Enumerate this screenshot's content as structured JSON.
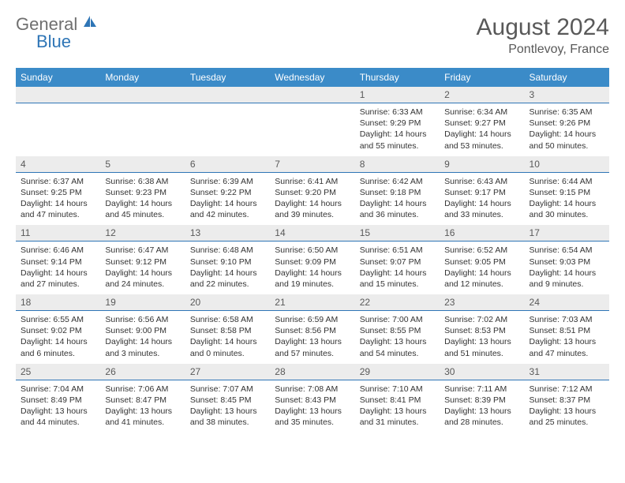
{
  "brand": {
    "name_part1": "General",
    "name_part2": "Blue"
  },
  "title": "August 2024",
  "location": "Pontlevoy, France",
  "colors": {
    "header_bg": "#3b8bc8",
    "daynum_bg": "#ececec",
    "rule": "#2e75b6",
    "text": "#333333",
    "muted": "#595959",
    "white": "#ffffff"
  },
  "day_names": [
    "Sunday",
    "Monday",
    "Tuesday",
    "Wednesday",
    "Thursday",
    "Friday",
    "Saturday"
  ],
  "weeks": [
    {
      "nums": [
        "",
        "",
        "",
        "",
        "1",
        "2",
        "3"
      ],
      "cells": [
        null,
        null,
        null,
        null,
        {
          "sunrise": "Sunrise: 6:33 AM",
          "sunset": "Sunset: 9:29 PM",
          "dl1": "Daylight: 14 hours",
          "dl2": "and 55 minutes."
        },
        {
          "sunrise": "Sunrise: 6:34 AM",
          "sunset": "Sunset: 9:27 PM",
          "dl1": "Daylight: 14 hours",
          "dl2": "and 53 minutes."
        },
        {
          "sunrise": "Sunrise: 6:35 AM",
          "sunset": "Sunset: 9:26 PM",
          "dl1": "Daylight: 14 hours",
          "dl2": "and 50 minutes."
        }
      ]
    },
    {
      "nums": [
        "4",
        "5",
        "6",
        "7",
        "8",
        "9",
        "10"
      ],
      "cells": [
        {
          "sunrise": "Sunrise: 6:37 AM",
          "sunset": "Sunset: 9:25 PM",
          "dl1": "Daylight: 14 hours",
          "dl2": "and 47 minutes."
        },
        {
          "sunrise": "Sunrise: 6:38 AM",
          "sunset": "Sunset: 9:23 PM",
          "dl1": "Daylight: 14 hours",
          "dl2": "and 45 minutes."
        },
        {
          "sunrise": "Sunrise: 6:39 AM",
          "sunset": "Sunset: 9:22 PM",
          "dl1": "Daylight: 14 hours",
          "dl2": "and 42 minutes."
        },
        {
          "sunrise": "Sunrise: 6:41 AM",
          "sunset": "Sunset: 9:20 PM",
          "dl1": "Daylight: 14 hours",
          "dl2": "and 39 minutes."
        },
        {
          "sunrise": "Sunrise: 6:42 AM",
          "sunset": "Sunset: 9:18 PM",
          "dl1": "Daylight: 14 hours",
          "dl2": "and 36 minutes."
        },
        {
          "sunrise": "Sunrise: 6:43 AM",
          "sunset": "Sunset: 9:17 PM",
          "dl1": "Daylight: 14 hours",
          "dl2": "and 33 minutes."
        },
        {
          "sunrise": "Sunrise: 6:44 AM",
          "sunset": "Sunset: 9:15 PM",
          "dl1": "Daylight: 14 hours",
          "dl2": "and 30 minutes."
        }
      ]
    },
    {
      "nums": [
        "11",
        "12",
        "13",
        "14",
        "15",
        "16",
        "17"
      ],
      "cells": [
        {
          "sunrise": "Sunrise: 6:46 AM",
          "sunset": "Sunset: 9:14 PM",
          "dl1": "Daylight: 14 hours",
          "dl2": "and 27 minutes."
        },
        {
          "sunrise": "Sunrise: 6:47 AM",
          "sunset": "Sunset: 9:12 PM",
          "dl1": "Daylight: 14 hours",
          "dl2": "and 24 minutes."
        },
        {
          "sunrise": "Sunrise: 6:48 AM",
          "sunset": "Sunset: 9:10 PM",
          "dl1": "Daylight: 14 hours",
          "dl2": "and 22 minutes."
        },
        {
          "sunrise": "Sunrise: 6:50 AM",
          "sunset": "Sunset: 9:09 PM",
          "dl1": "Daylight: 14 hours",
          "dl2": "and 19 minutes."
        },
        {
          "sunrise": "Sunrise: 6:51 AM",
          "sunset": "Sunset: 9:07 PM",
          "dl1": "Daylight: 14 hours",
          "dl2": "and 15 minutes."
        },
        {
          "sunrise": "Sunrise: 6:52 AM",
          "sunset": "Sunset: 9:05 PM",
          "dl1": "Daylight: 14 hours",
          "dl2": "and 12 minutes."
        },
        {
          "sunrise": "Sunrise: 6:54 AM",
          "sunset": "Sunset: 9:03 PM",
          "dl1": "Daylight: 14 hours",
          "dl2": "and 9 minutes."
        }
      ]
    },
    {
      "nums": [
        "18",
        "19",
        "20",
        "21",
        "22",
        "23",
        "24"
      ],
      "cells": [
        {
          "sunrise": "Sunrise: 6:55 AM",
          "sunset": "Sunset: 9:02 PM",
          "dl1": "Daylight: 14 hours",
          "dl2": "and 6 minutes."
        },
        {
          "sunrise": "Sunrise: 6:56 AM",
          "sunset": "Sunset: 9:00 PM",
          "dl1": "Daylight: 14 hours",
          "dl2": "and 3 minutes."
        },
        {
          "sunrise": "Sunrise: 6:58 AM",
          "sunset": "Sunset: 8:58 PM",
          "dl1": "Daylight: 14 hours",
          "dl2": "and 0 minutes."
        },
        {
          "sunrise": "Sunrise: 6:59 AM",
          "sunset": "Sunset: 8:56 PM",
          "dl1": "Daylight: 13 hours",
          "dl2": "and 57 minutes."
        },
        {
          "sunrise": "Sunrise: 7:00 AM",
          "sunset": "Sunset: 8:55 PM",
          "dl1": "Daylight: 13 hours",
          "dl2": "and 54 minutes."
        },
        {
          "sunrise": "Sunrise: 7:02 AM",
          "sunset": "Sunset: 8:53 PM",
          "dl1": "Daylight: 13 hours",
          "dl2": "and 51 minutes."
        },
        {
          "sunrise": "Sunrise: 7:03 AM",
          "sunset": "Sunset: 8:51 PM",
          "dl1": "Daylight: 13 hours",
          "dl2": "and 47 minutes."
        }
      ]
    },
    {
      "nums": [
        "25",
        "26",
        "27",
        "28",
        "29",
        "30",
        "31"
      ],
      "cells": [
        {
          "sunrise": "Sunrise: 7:04 AM",
          "sunset": "Sunset: 8:49 PM",
          "dl1": "Daylight: 13 hours",
          "dl2": "and 44 minutes."
        },
        {
          "sunrise": "Sunrise: 7:06 AM",
          "sunset": "Sunset: 8:47 PM",
          "dl1": "Daylight: 13 hours",
          "dl2": "and 41 minutes."
        },
        {
          "sunrise": "Sunrise: 7:07 AM",
          "sunset": "Sunset: 8:45 PM",
          "dl1": "Daylight: 13 hours",
          "dl2": "and 38 minutes."
        },
        {
          "sunrise": "Sunrise: 7:08 AM",
          "sunset": "Sunset: 8:43 PM",
          "dl1": "Daylight: 13 hours",
          "dl2": "and 35 minutes."
        },
        {
          "sunrise": "Sunrise: 7:10 AM",
          "sunset": "Sunset: 8:41 PM",
          "dl1": "Daylight: 13 hours",
          "dl2": "and 31 minutes."
        },
        {
          "sunrise": "Sunrise: 7:11 AM",
          "sunset": "Sunset: 8:39 PM",
          "dl1": "Daylight: 13 hours",
          "dl2": "and 28 minutes."
        },
        {
          "sunrise": "Sunrise: 7:12 AM",
          "sunset": "Sunset: 8:37 PM",
          "dl1": "Daylight: 13 hours",
          "dl2": "and 25 minutes."
        }
      ]
    }
  ]
}
